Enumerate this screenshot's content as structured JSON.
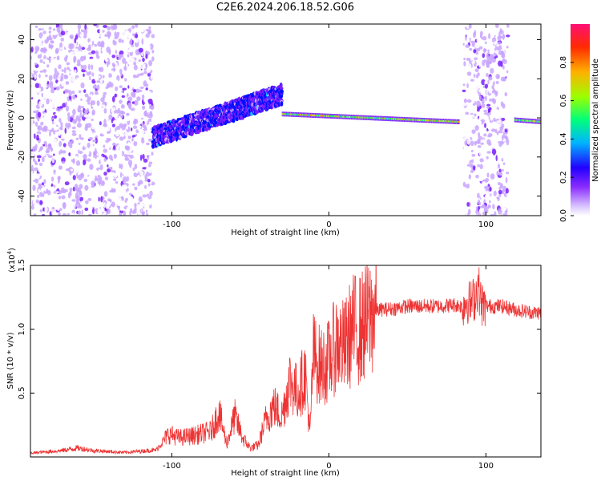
{
  "title": "C2E6.2024.206.18.52.G06",
  "chart_data": [
    {
      "type": "heatmap",
      "xlabel": "Height of straight line (km)",
      "ylabel": "Frequency (Hz)",
      "xlim": [
        -190,
        135
      ],
      "ylim": [
        -50,
        48
      ],
      "xticks": [
        -100,
        0,
        100
      ],
      "xtick_labels": [
        "-100",
        "0",
        "100"
      ],
      "yticks": [
        -40,
        -20,
        0,
        20,
        40
      ],
      "ytick_labels": [
        "-40",
        "-20",
        "0",
        "20",
        "40"
      ],
      "colorbar": {
        "label": "Normalized spectral amplitude",
        "range": [
          0,
          1
        ],
        "ticks": [
          0.0,
          0.2,
          0.4,
          0.6,
          0.8
        ],
        "tick_labels": [
          "0.0",
          "0.2",
          "0.4",
          "0.6",
          "0.8"
        ],
        "colors": [
          "#ffffff",
          "#c9a6ff",
          "#7a1fff",
          "#0010ff",
          "#00c8ff",
          "#00ff66",
          "#c8ff00",
          "#ffa000",
          "#ff2000",
          "#ff1070"
        ]
      },
      "features": [
        {
          "label": "noise band",
          "x_range": [
            -190,
            -112
          ],
          "freq_range": [
            -50,
            48
          ]
        },
        {
          "label": "rising trace",
          "x_start": -112,
          "x_end": -30,
          "freq_start": -10,
          "freq_end": 12
        },
        {
          "label": "stable carrier",
          "x_start": -30,
          "x_end": 82,
          "freq_start": 2,
          "freq_end": -2
        },
        {
          "label": "noise band",
          "x_range": [
            86,
            114
          ],
          "freq_range": [
            -50,
            48
          ]
        },
        {
          "label": "stable carrier",
          "x_start": 118,
          "x_end": 135,
          "freq_start": -1,
          "freq_end": -2
        }
      ]
    },
    {
      "type": "line",
      "xlabel": "Height of straight line (km)",
      "ylabel": "SNR (10 * v/v)",
      "scale_label": "(x10",
      "scale_exponent": "4",
      "scale_suffix": ")",
      "xlim": [
        -190,
        135
      ],
      "ylim": [
        0,
        15000
      ],
      "xticks": [
        -100,
        0,
        100
      ],
      "xtick_labels": [
        "-100",
        "0",
        "100"
      ],
      "yticks": [
        5000,
        10000,
        15000
      ],
      "ytick_labels": [
        "0.5",
        "1.0",
        "1.5"
      ],
      "color": "#ee3333",
      "series": [
        {
          "x": [
            -190,
            -170,
            -160,
            -150,
            -130,
            -110,
            -102,
            -95,
            -85,
            -75,
            -70,
            -65,
            -60,
            -55,
            -50,
            -45,
            -40,
            -35,
            -30,
            -25,
            -20,
            -15,
            -12,
            -10,
            -5,
            0,
            5,
            10,
            15,
            20,
            30,
            40,
            50,
            60,
            70,
            80,
            85,
            88,
            90,
            93,
            95,
            97,
            100,
            110,
            120,
            130,
            135
          ],
          "y": [
            300,
            500,
            700,
            500,
            350,
            550,
            1800,
            1500,
            1700,
            2000,
            3500,
            1000,
            3200,
            1500,
            700,
            900,
            3000,
            4000,
            3200,
            6000,
            5000,
            6500,
            1700,
            8000,
            7000,
            7500,
            9000,
            8500,
            10000,
            10000,
            11500,
            11600,
            11800,
            11800,
            11800,
            11900,
            11800,
            12300,
            12000,
            12500,
            13500,
            12000,
            11800,
            11800,
            11500,
            11300,
            11300
          ]
        }
      ]
    }
  ]
}
